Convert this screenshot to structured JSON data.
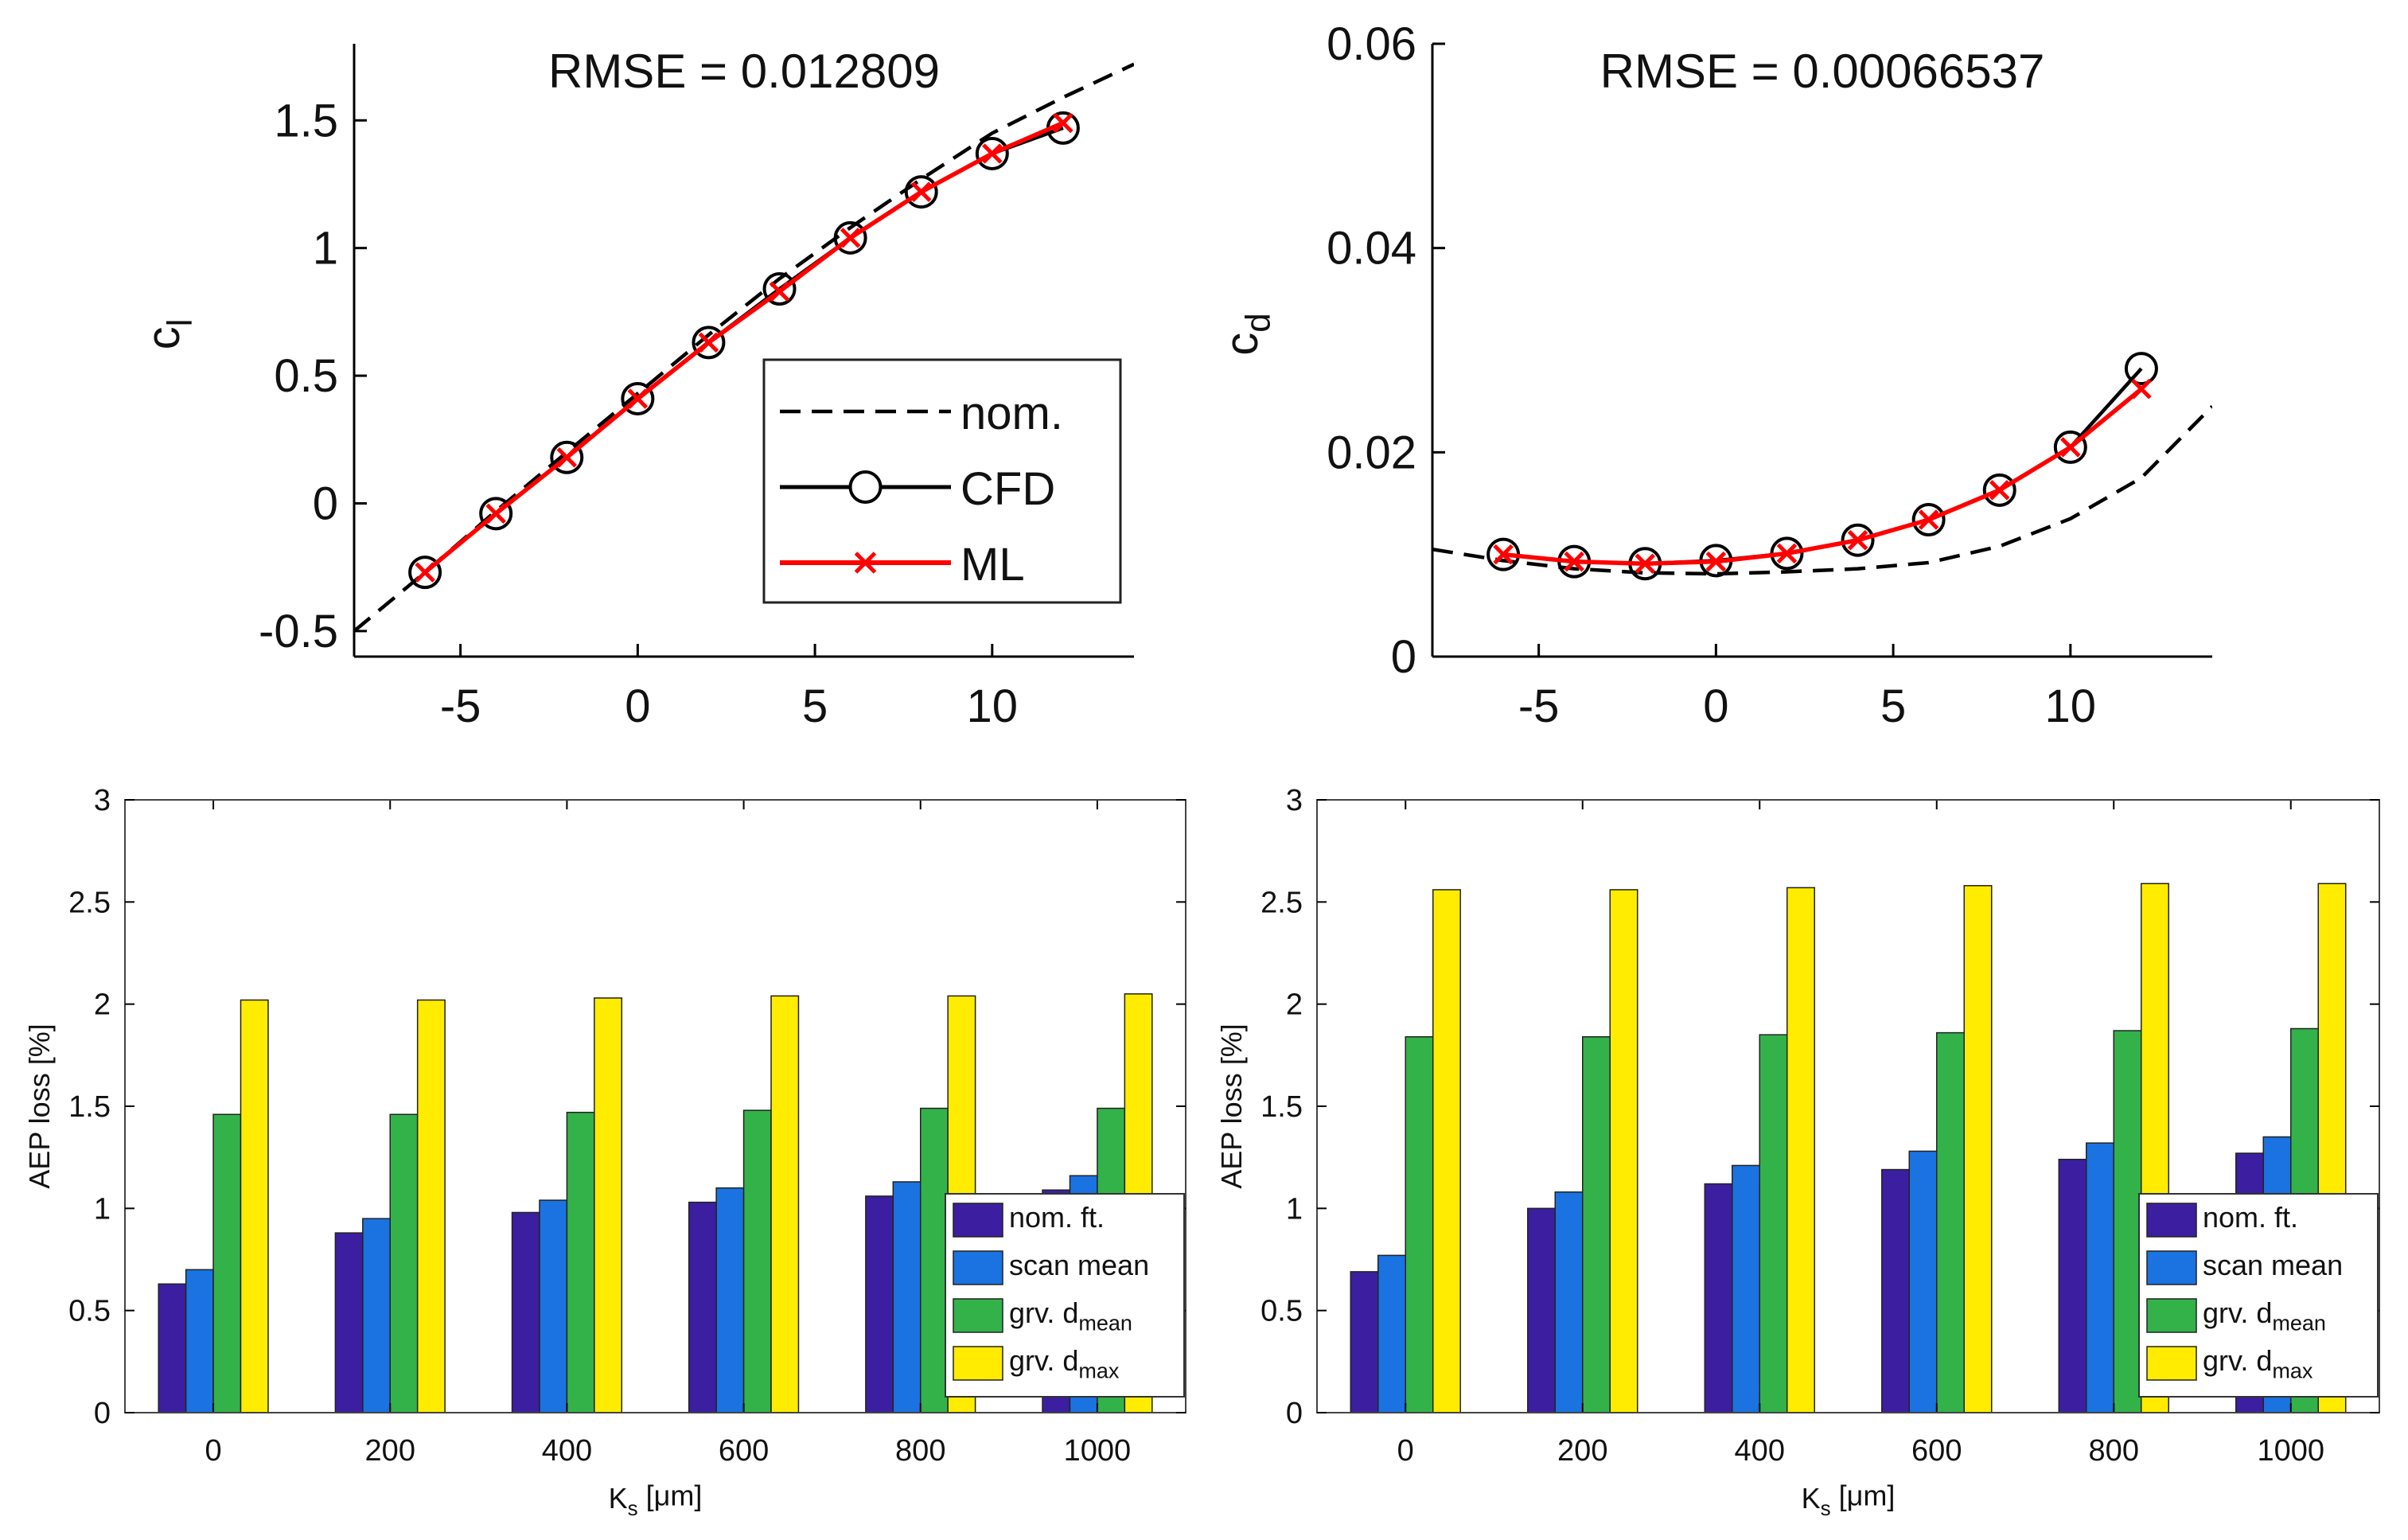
{
  "colors": {
    "nom": "#000000",
    "cfd": "#000000",
    "ml": "#ff0000",
    "bar_nom_ft": "#3b1fa0",
    "bar_scan_mean": "#1a73e0",
    "bar_grv_dmean": "#33b24a",
    "bar_grv_dmax": "#ffec00"
  },
  "chart_data": [
    {
      "type": "line",
      "title": "RMSE = 0.012809",
      "ylabel": "c",
      "ylabel_sub": "l",
      "xlim": [
        -8,
        14
      ],
      "ylim": [
        -0.6,
        1.8
      ],
      "xticks": [
        "-5",
        "0",
        "5",
        "10"
      ],
      "xtick_values": [
        -5,
        0,
        5,
        10
      ],
      "yticks": [
        "-0.5",
        "0",
        "0.5",
        "1",
        "1.5"
      ],
      "ytick_values": [
        -0.5,
        0,
        0.5,
        1,
        1.5
      ],
      "legend": {
        "placement": "bottom-right",
        "entries": [
          "nom.",
          "CFD",
          "ML"
        ]
      },
      "series": [
        {
          "name": "nom.",
          "style": "dashed",
          "x": [
            -8,
            -6,
            -4,
            -2,
            0,
            2,
            4,
            6,
            8,
            10,
            12,
            14
          ],
          "y": [
            -0.5,
            -0.27,
            -0.03,
            0.2,
            0.43,
            0.66,
            0.88,
            1.08,
            1.27,
            1.45,
            1.59,
            1.72
          ]
        },
        {
          "name": "CFD",
          "marker": "circle",
          "x": [
            -6,
            -4,
            -2,
            0,
            2,
            4,
            6,
            8,
            10,
            12
          ],
          "y": [
            -0.27,
            -0.04,
            0.18,
            0.41,
            0.63,
            0.84,
            1.04,
            1.22,
            1.37,
            1.47
          ]
        },
        {
          "name": "ML",
          "marker": "cross",
          "x": [
            -6,
            -4,
            -2,
            0,
            2,
            4,
            6,
            8,
            10,
            12
          ],
          "y": [
            -0.27,
            -0.04,
            0.18,
            0.41,
            0.63,
            0.83,
            1.04,
            1.22,
            1.37,
            1.49
          ]
        }
      ]
    },
    {
      "type": "line",
      "title": "RMSE = 0.00066537",
      "ylabel": "c",
      "ylabel_sub": "d",
      "xlim": [
        -8,
        14
      ],
      "ylim": [
        0,
        0.06
      ],
      "xticks": [
        "-5",
        "0",
        "5",
        "10"
      ],
      "xtick_values": [
        -5,
        0,
        5,
        10
      ],
      "yticks": [
        "0",
        "0.02",
        "0.04",
        "0.06"
      ],
      "ytick_values": [
        0,
        0.02,
        0.04,
        0.06
      ],
      "series": [
        {
          "name": "nom.",
          "style": "dashed",
          "x": [
            -8,
            -6,
            -4,
            -2,
            0,
            2,
            4,
            6,
            8,
            10,
            12,
            14
          ],
          "y": [
            0.0105,
            0.0094,
            0.0086,
            0.0082,
            0.0081,
            0.0083,
            0.0086,
            0.0092,
            0.0108,
            0.0135,
            0.0175,
            0.0245
          ]
        },
        {
          "name": "CFD",
          "marker": "circle",
          "x": [
            -6,
            -4,
            -2,
            0,
            2,
            4,
            6,
            8,
            10,
            12
          ],
          "y": [
            0.01,
            0.0093,
            0.0091,
            0.0094,
            0.0101,
            0.0114,
            0.0134,
            0.0163,
            0.0205,
            0.0282
          ]
        },
        {
          "name": "ML",
          "marker": "cross",
          "x": [
            -6,
            -4,
            -2,
            0,
            2,
            4,
            6,
            8,
            10,
            12
          ],
          "y": [
            0.01,
            0.0093,
            0.0091,
            0.0093,
            0.0101,
            0.0114,
            0.0134,
            0.0163,
            0.0205,
            0.0262
          ]
        }
      ]
    },
    {
      "type": "bar",
      "xlabel": "K",
      "xlabel_sub": "s",
      "xlabel_unit": " [μm]",
      "ylabel": "AEP loss [%]",
      "ylim": [
        0,
        3
      ],
      "yticks": [
        "0",
        "0.5",
        "1",
        "1.5",
        "2",
        "2.5",
        "3"
      ],
      "ytick_values": [
        0,
        0.5,
        1,
        1.5,
        2,
        2.5,
        3
      ],
      "categories": [
        "0",
        "200",
        "400",
        "600",
        "800",
        "1000"
      ],
      "legend": {
        "placement": "bottom-right"
      },
      "series": [
        {
          "name": "nom. ft.",
          "values": [
            0.63,
            0.88,
            0.98,
            1.03,
            1.06,
            1.09
          ]
        },
        {
          "name": "scan mean",
          "values": [
            0.7,
            0.95,
            1.04,
            1.1,
            1.13,
            1.16
          ]
        },
        {
          "name": "grv. d",
          "sub": "mean",
          "values": [
            1.46,
            1.46,
            1.47,
            1.48,
            1.49,
            1.49
          ]
        },
        {
          "name": "grv. d",
          "sub": "max",
          "values": [
            2.02,
            2.02,
            2.03,
            2.04,
            2.04,
            2.05
          ]
        }
      ]
    },
    {
      "type": "bar",
      "xlabel": "K",
      "xlabel_sub": "s",
      "xlabel_unit": " [μm]",
      "ylabel": "AEP loss [%]",
      "ylim": [
        0,
        3
      ],
      "yticks": [
        "0",
        "0.5",
        "1",
        "1.5",
        "2",
        "2.5",
        "3"
      ],
      "ytick_values": [
        0,
        0.5,
        1,
        1.5,
        2,
        2.5,
        3
      ],
      "categories": [
        "0",
        "200",
        "400",
        "600",
        "800",
        "1000"
      ],
      "legend": {
        "placement": "bottom-right"
      },
      "series": [
        {
          "name": "nom. ft.",
          "values": [
            0.69,
            1.0,
            1.12,
            1.19,
            1.24,
            1.27
          ]
        },
        {
          "name": "scan mean",
          "values": [
            0.77,
            1.08,
            1.21,
            1.28,
            1.32,
            1.35
          ]
        },
        {
          "name": "grv. d",
          "sub": "mean",
          "values": [
            1.84,
            1.84,
            1.85,
            1.86,
            1.87,
            1.88
          ]
        },
        {
          "name": "grv. d",
          "sub": "max",
          "values": [
            2.56,
            2.56,
            2.57,
            2.58,
            2.59,
            2.59
          ]
        }
      ]
    }
  ]
}
